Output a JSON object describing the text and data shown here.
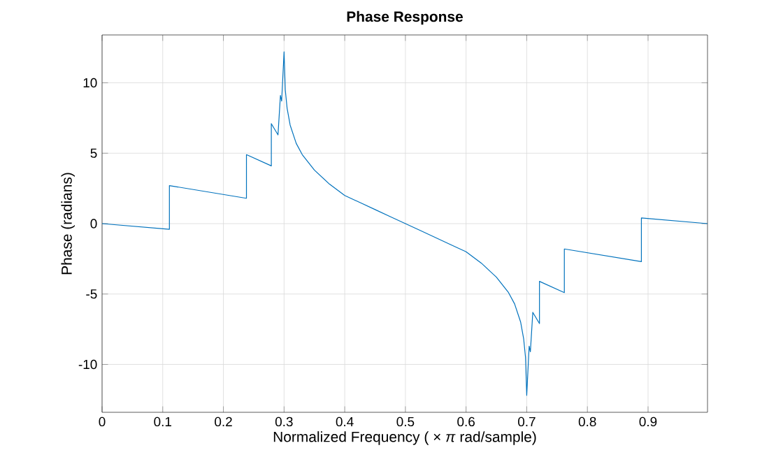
{
  "chart_data": {
    "type": "line",
    "title": "Phase Response",
    "xlabel": "Normalized  Frequency    ( × *π*  rad/sample)",
    "ylabel": "Phase (radians)",
    "xlim": [
      0,
      0.998
    ],
    "ylim": [
      -13.4,
      13.4
    ],
    "xticks": [
      0,
      0.1,
      0.2,
      0.3,
      0.4,
      0.5,
      0.6,
      0.7,
      0.8,
      0.9
    ],
    "yticks": [
      -10,
      -5,
      0,
      5,
      10
    ],
    "grid": true,
    "series": [
      {
        "color": "#0072bd",
        "x": [
          0,
          0.111,
          0.111,
          0.238,
          0.238,
          0.279,
          0.279,
          0.29,
          0.294,
          0.296,
          0.3,
          0.302,
          0.305,
          0.31,
          0.32,
          0.33,
          0.35,
          0.375,
          0.4,
          0.425,
          0.45,
          0.475,
          0.5,
          0.525,
          0.55,
          0.575,
          0.6,
          0.625,
          0.65,
          0.67,
          0.68,
          0.69,
          0.695,
          0.698,
          0.7,
          0.704,
          0.706,
          0.71,
          0.721,
          0.721,
          0.762,
          0.762,
          0.889,
          0.889,
          0.998
        ],
        "values": [
          0,
          -0.4,
          2.7,
          1.8,
          4.9,
          4.1,
          7.1,
          6.3,
          9.1,
          8.7,
          12.2,
          9.5,
          8.2,
          7.0,
          5.7,
          4.9,
          3.8,
          2.8,
          2.0,
          1.5,
          1.0,
          0.5,
          0,
          -0.5,
          -1.0,
          -1.5,
          -2.0,
          -2.8,
          -3.8,
          -4.9,
          -5.7,
          -7.0,
          -8.2,
          -9.5,
          -12.2,
          -8.7,
          -9.1,
          -6.3,
          -7.1,
          -4.1,
          -4.9,
          -1.8,
          -2.7,
          0.4,
          0
        ]
      }
    ]
  }
}
